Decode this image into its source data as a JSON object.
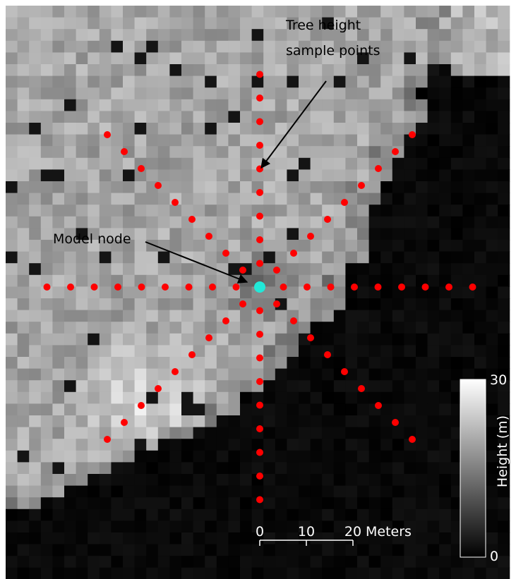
{
  "annotations": {
    "sample_points": [
      "Tree height",
      "sample points"
    ],
    "model_node": "Model node"
  },
  "scale_bar": {
    "ticks": [
      "0",
      "10",
      "20"
    ],
    "unit": "Meters"
  },
  "colorbar": {
    "title": "Height (m)",
    "max": 30,
    "min": 0
  }
}
